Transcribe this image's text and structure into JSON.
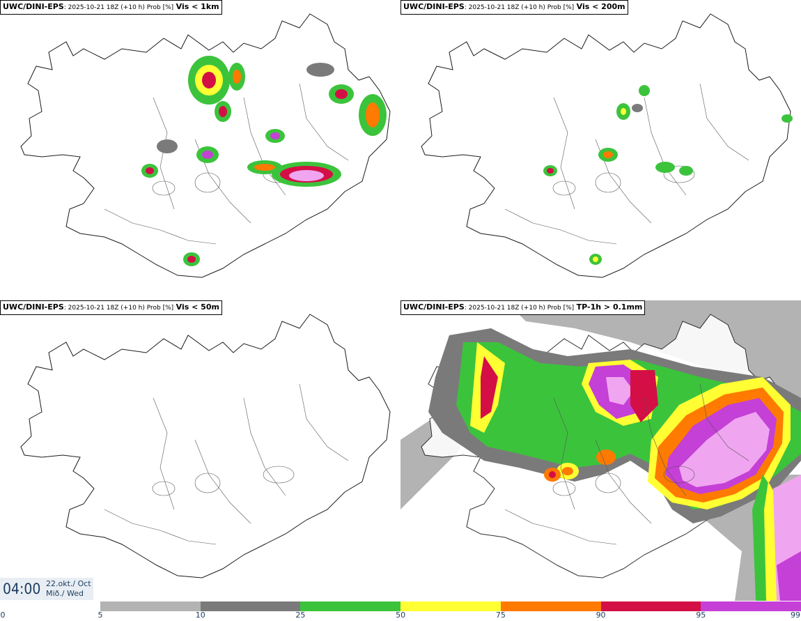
{
  "panels": [
    {
      "model": "UWC/DINI-EPS",
      "run": ": 2025-10-21 18Z (+10 h) Prob [%]",
      "variable": "Vis < 1km"
    },
    {
      "model": "UWC/DINI-EPS",
      "run": ": 2025-10-21 18Z (+10 h) Prob [%]",
      "variable": "Vis < 200m"
    },
    {
      "model": "UWC/DINI-EPS",
      "run": ": 2025-10-21 18Z (+10 h) Prob [%]",
      "variable": "Vis < 50m"
    },
    {
      "model": "UWC/DINI-EPS",
      "run": ": 2025-10-21 18Z (+10 h) Prob [%]",
      "variable": "TP-1h > 0.1mm"
    }
  ],
  "clock": {
    "time": "04:00",
    "date_line1": "22.okt./ Oct",
    "date_line2": "Mið./ Wed"
  },
  "legend": {
    "ticks": [
      "0",
      "5",
      "10",
      "25",
      "50",
      "75",
      "90",
      "95",
      "99"
    ],
    "colors": [
      "#b3b3b3",
      "#7a7a7a",
      "#3cc33c",
      "#ffff33",
      "#ff7a00",
      "#d40f46",
      "#c440d6"
    ]
  }
}
